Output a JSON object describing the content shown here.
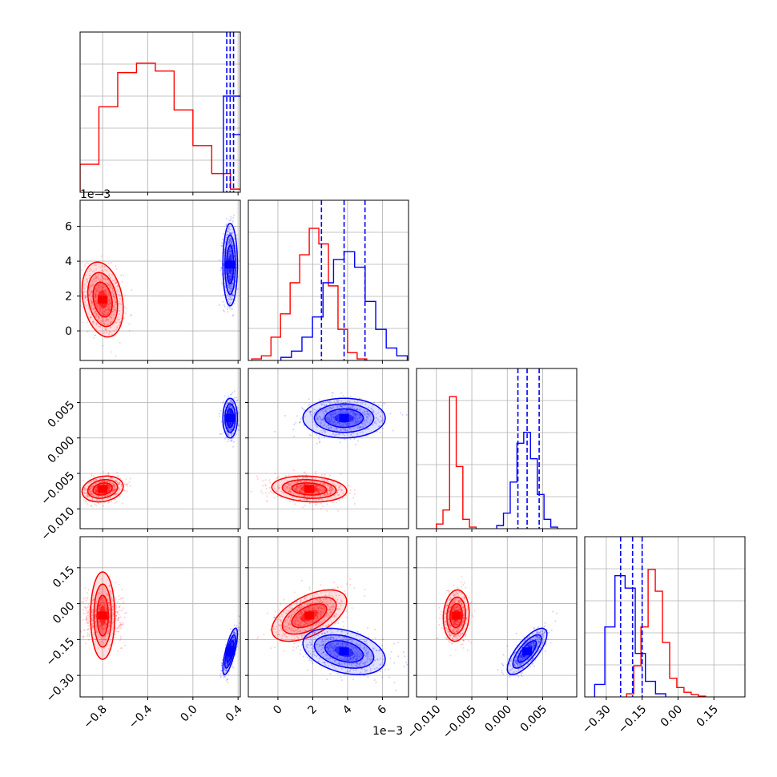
{
  "chart_data": {
    "type": "corner",
    "parameters": 4,
    "grid": true,
    "colors": {
      "red": "#ff0000",
      "blue": "#0000ff"
    },
    "offset_labels": {
      "p1": "1e−3"
    },
    "axes": {
      "p0": {
        "lim": [
          -1.0,
          0.42
        ],
        "ticks": [
          -0.8,
          -0.4,
          0.0,
          0.4
        ],
        "tick_labels": [
          "−0.8",
          "−0.4",
          "0.0",
          "0.4"
        ]
      },
      "p1": {
        "lim": [
          -0.0017,
          0.0075
        ],
        "ticks": [
          0.0,
          0.002,
          0.004,
          0.006
        ],
        "tick_labels": [
          "0",
          "2",
          "4",
          "6"
        ]
      },
      "p2": {
        "lim": [
          -0.0128,
          0.0098
        ],
        "ticks": [
          -0.01,
          -0.005,
          0.0,
          0.005
        ],
        "tick_labels": [
          "−0.010",
          "−0.005",
          "0.000",
          "0.005"
        ]
      },
      "p3": {
        "lim": [
          -0.39,
          0.28
        ],
        "ticks": [
          -0.3,
          -0.15,
          0.0,
          0.15
        ],
        "tick_labels": [
          "−0.30",
          "−0.15",
          "0.00",
          "0.15"
        ]
      }
    },
    "series": [
      {
        "color": "red",
        "mean": [
          -0.8,
          0.0018,
          -0.0072,
          -0.05
        ],
        "std": [
          0.085,
          0.001,
          0.00085,
          0.05
        ],
        "corr": [
          [
            1,
            -0.25
          ],
          [
            2,
            0.2
          ],
          [
            3,
            0.0
          ]
        ],
        "hist": {
          "p0": {
            "edges": [
              -1.0,
              0.5
            ],
            "heights": [
              0.18,
              0.55,
              0.77,
              0.83,
              0.78,
              0.53,
              0.3,
              0.12,
              0.02
            ]
          },
          "p1": {
            "heights": [
              0.01,
              0.03,
              0.15,
              0.3,
              0.5,
              0.68,
              0.85,
              0.75,
              0.48,
              0.2,
              0.05,
              0.01
            ]
          },
          "p2": {
            "heights": [
              0.03,
              0.12,
              0.85,
              0.4,
              0.06,
              0.01
            ]
          },
          "p3": {
            "heights": [
              0.02,
              0.2,
              0.45,
              0.82,
              0.68,
              0.35,
              0.12,
              0.06,
              0.03,
              0.015,
              0.005
            ]
          }
        }
      },
      {
        "color": "blue",
        "mean": [
          0.33,
          0.0038,
          0.0028,
          -0.2
        ],
        "std": [
          0.03,
          0.0011,
          0.0013,
          0.045
        ],
        "corr": [
          [
            1,
            0.0
          ],
          [
            2,
            0.0
          ],
          [
            3,
            0.75
          ]
        ],
        "quantiles": {
          "p0": [
            0.3,
            0.33,
            0.36
          ],
          "p1": [
            0.0025,
            0.0038,
            0.005
          ],
          "p2": [
            0.0015,
            0.0028,
            0.0045
          ],
          "p3": [
            -0.24,
            -0.19,
            -0.15
          ]
        },
        "hist": {
          "p1": {
            "heights": [
              0.02,
              0.06,
              0.15,
              0.28,
              0.5,
              0.65,
              0.7,
              0.6,
              0.38,
              0.2,
              0.08,
              0.03
            ]
          },
          "p2": {
            "heights": [
              0.02,
              0.1,
              0.3,
              0.55,
              0.62,
              0.45,
              0.22,
              0.06,
              0.01
            ]
          },
          "p3": {
            "heights": [
              0.08,
              0.45,
              0.78,
              0.7,
              0.28,
              0.1,
              0.02
            ]
          }
        }
      }
    ]
  }
}
